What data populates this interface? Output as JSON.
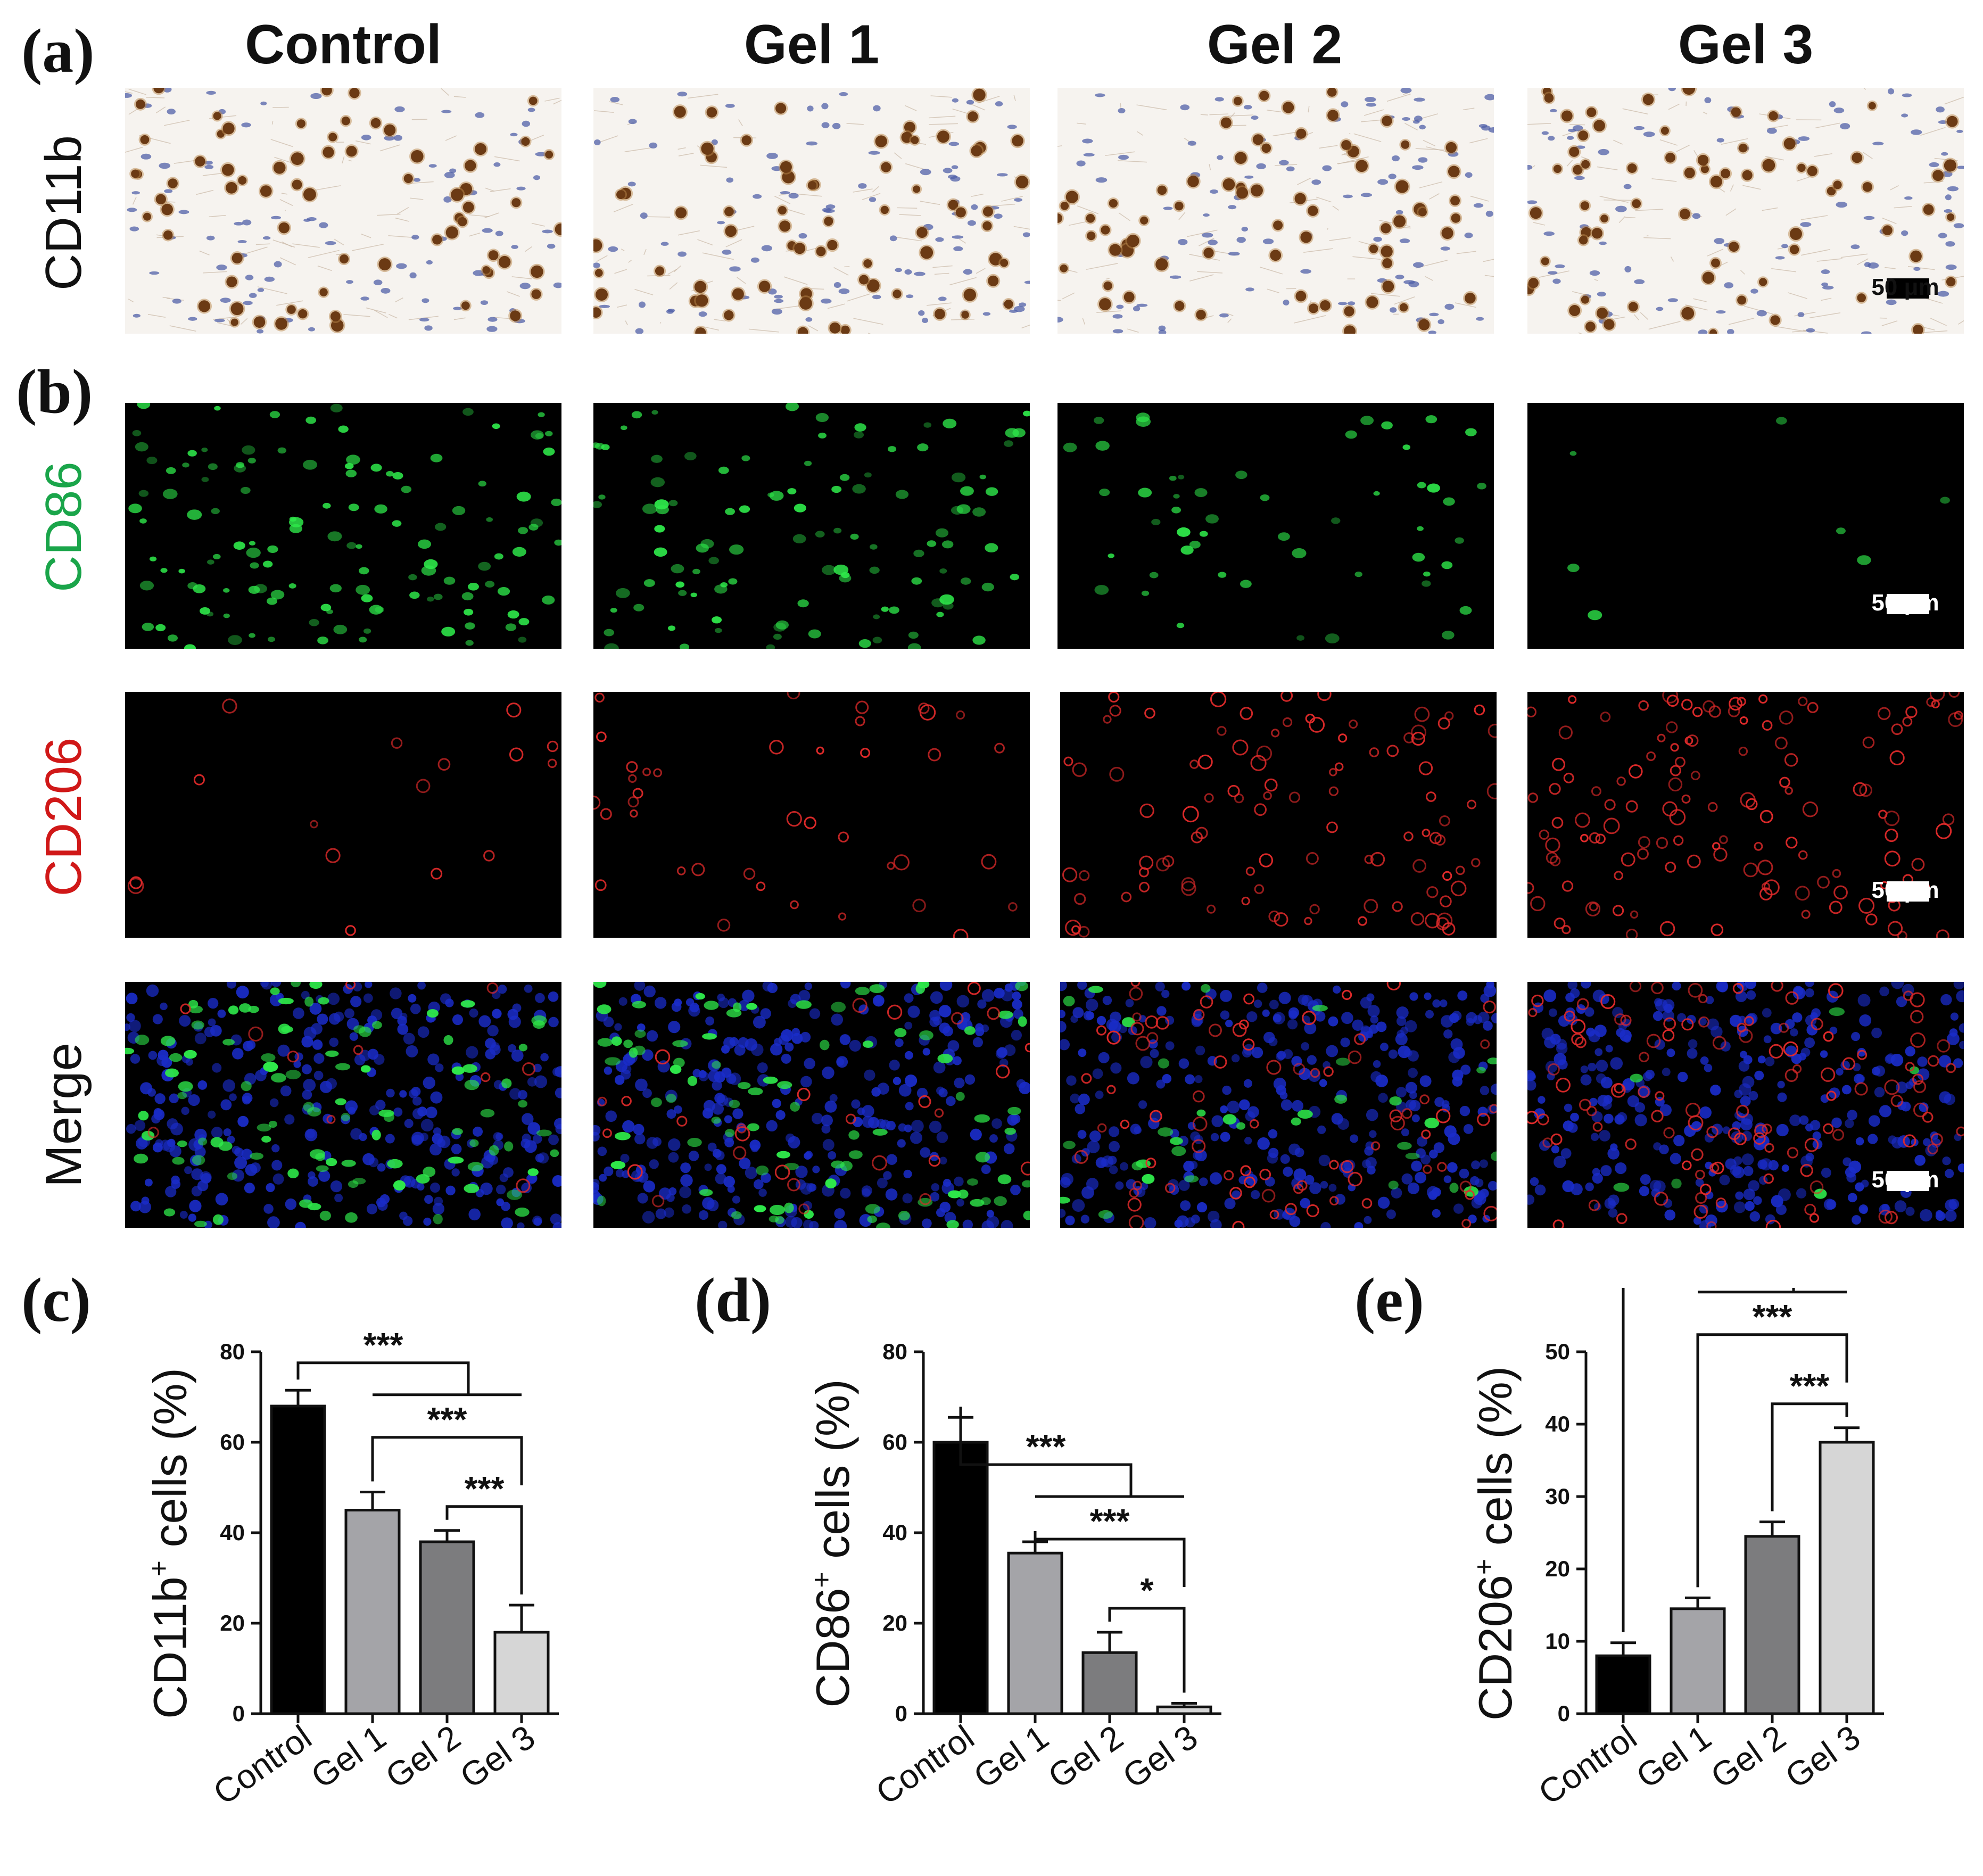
{
  "panel_letters": {
    "a": "(a)",
    "b": "(b)",
    "c": "(c)",
    "d": "(d)",
    "e": "(e)"
  },
  "columns": [
    "Control",
    "Gel 1",
    "Gel 2",
    "Gel 3"
  ],
  "rows": {
    "cd11b": "CD11b",
    "cd86": "CD86",
    "cd206": "CD206",
    "merge": "Merge"
  },
  "scale_bar_label": "50 μm",
  "colors": {
    "cd86_label": "#1aa54a",
    "cd206_label": "#d01818",
    "ihc_bg": "#f6f3ef",
    "brown_cell": "#6b3a14",
    "blue_nucleus": "#5060a8",
    "green_signal": "#2ee84a",
    "red_signal": "#e02a2a",
    "dapi_blue": "#1a2cc8",
    "bar_control": "#000000",
    "bar_gel1": "#a4a4a8",
    "bar_gel2": "#7c7c7e",
    "bar_gel3": "#d6d6d6"
  },
  "chart_data": [
    {
      "type": "bar",
      "panel": "(c)",
      "categories": [
        "Control",
        "Gel 1",
        "Gel 2",
        "Gel 3"
      ],
      "values": [
        68,
        45,
        38,
        18
      ],
      "errors": [
        3.5,
        4,
        2.5,
        6
      ],
      "ylabel_main": "CD11b",
      "ylabel_sup": "+",
      "ylabel_rest": " cells (%)",
      "ylim": [
        0,
        80
      ],
      "yticks": [
        0,
        20,
        40,
        60,
        80
      ],
      "significance": [
        "***",
        "***",
        "***"
      ]
    },
    {
      "type": "bar",
      "panel": "(d)",
      "categories": [
        "Control",
        "Gel 1",
        "Gel 2",
        "Gel 3"
      ],
      "values": [
        60,
        35.5,
        13.5,
        1.5
      ],
      "errors": [
        5.5,
        2.5,
        4.5,
        0.8
      ],
      "ylabel_main": "CD86",
      "ylabel_sup": "+",
      "ylabel_rest": " cells (%)",
      "ylim": [
        0,
        80
      ],
      "yticks": [
        0,
        20,
        40,
        60,
        80
      ],
      "significance": [
        "***",
        "***",
        "*"
      ]
    },
    {
      "type": "bar",
      "panel": "(e)",
      "categories": [
        "Control",
        "Gel 1",
        "Gel 2",
        "Gel 3"
      ],
      "values": [
        8,
        14.5,
        24.5,
        37.5
      ],
      "errors": [
        1.8,
        1.5,
        2,
        2
      ],
      "ylabel_main": "CD206",
      "ylabel_sup": "+",
      "ylabel_rest": " cells (%)",
      "ylim": [
        0,
        50
      ],
      "yticks": [
        0,
        10,
        20,
        30,
        40,
        50
      ],
      "significance": [
        "***",
        "***",
        "***"
      ]
    }
  ]
}
